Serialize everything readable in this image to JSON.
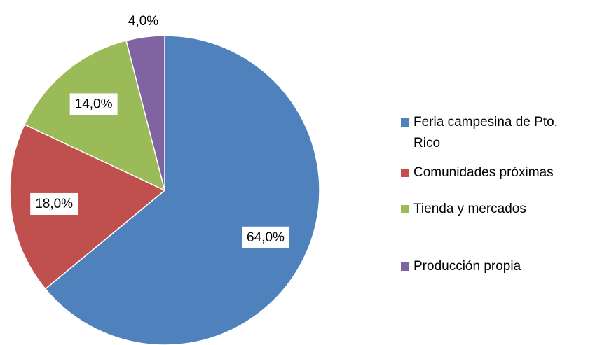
{
  "chart_data": {
    "type": "pie",
    "categories": [
      "Feria campesina de Pto. Rico",
      "Comunidades próximas",
      "Tienda y mercados",
      "Producción propia"
    ],
    "values": [
      64,
      18,
      14,
      4
    ],
    "value_labels": [
      "64,0%",
      "18,0%",
      "14,0%",
      "4,0%"
    ],
    "colors": [
      "#4f81bd",
      "#c0504d",
      "#9bbb59",
      "#8064a2"
    ],
    "legend": "right"
  }
}
